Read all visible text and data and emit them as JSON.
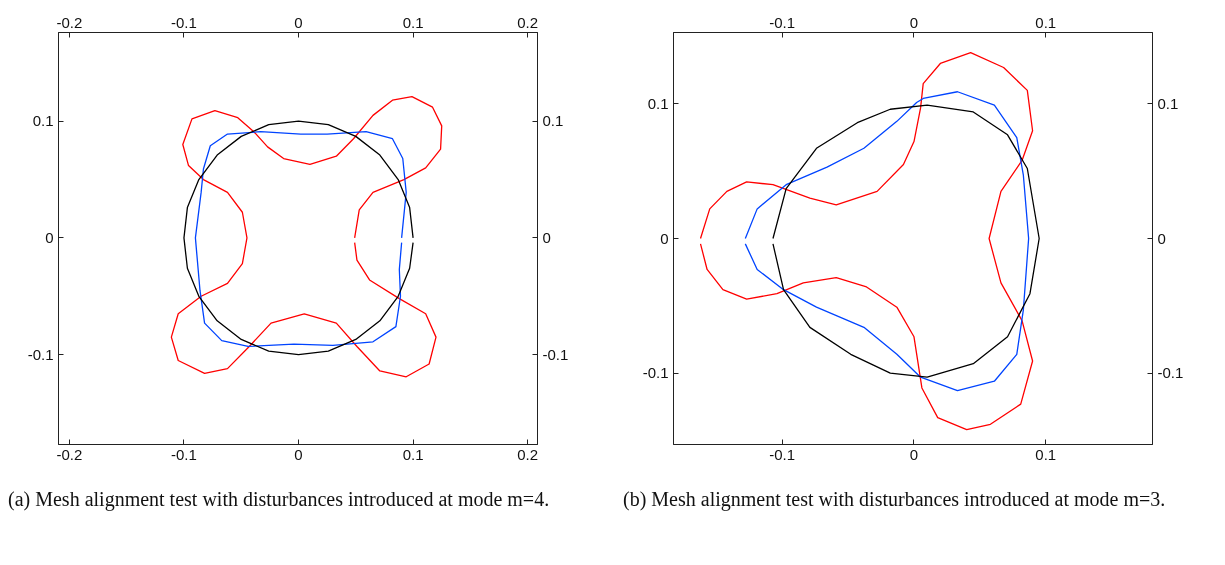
{
  "chart_data": [
    {
      "type": "line",
      "grid": false,
      "marker": "none",
      "line_style": "solid",
      "xlim": [
        -0.2095,
        0.2086
      ],
      "ylim": [
        -0.177,
        0.176
      ],
      "x2lim": [
        -0.2095,
        0.2086
      ],
      "y2lim": [
        -0.177,
        0.176
      ],
      "xticks": [
        -0.2,
        -0.1,
        0,
        0.1,
        0.2
      ],
      "yticks": [
        -0.1,
        0,
        0.1
      ],
      "x2ticks": [
        -0.2,
        -0.1,
        0,
        0.1,
        0.2
      ],
      "y2ticks": [
        -0.1,
        0,
        0.1
      ],
      "series": [
        {
          "color": "#ff0000",
          "x": [
            0.049,
            0.053,
            0.065,
            0.092,
            0.111,
            0.124,
            0.125,
            0.117,
            0.099,
            0.082,
            0.065,
            0.048,
            0.033,
            0.01,
            -0.013,
            -0.027,
            -0.039,
            -0.053,
            -0.073,
            -0.093,
            -0.101,
            -0.096,
            -0.083,
            -0.062,
            -0.049,
            -0.045,
            -0.049,
            -0.062,
            -0.085,
            -0.105,
            -0.111,
            -0.105,
            -0.082,
            -0.062,
            -0.043,
            -0.024,
            0.005,
            0.033,
            0.051,
            0.071,
            0.094,
            0.114,
            0.12,
            0.111,
            0.088,
            0.062,
            0.051,
            0.049
          ],
          "values": [
            0,
            0.024,
            0.039,
            0.05,
            0.06,
            0.076,
            0.096,
            0.112,
            0.121,
            0.118,
            0.105,
            0.085,
            0.07,
            0.063,
            0.068,
            0.078,
            0.091,
            0.103,
            0.109,
            0.102,
            0.08,
            0.062,
            0.05,
            0.039,
            0.022,
            0,
            -0.022,
            -0.039,
            -0.05,
            -0.065,
            -0.085,
            -0.105,
            -0.116,
            -0.112,
            -0.093,
            -0.073,
            -0.065,
            -0.073,
            -0.093,
            -0.114,
            -0.119,
            -0.108,
            -0.085,
            -0.065,
            -0.052,
            -0.036,
            -0.019,
            -0.004
          ]
        },
        {
          "color": "#0044ff",
          "x": [
            0.09,
            0.094,
            0.091,
            0.082,
            0.059,
            0.025,
            0.002,
            -0.033,
            -0.062,
            -0.077,
            -0.083,
            -0.085,
            -0.09,
            -0.086,
            -0.082,
            -0.067,
            -0.044,
            -0.004,
            0.03,
            0.065,
            0.085,
            0.089,
            0.088,
            0.09
          ],
          "values": [
            0,
            0.039,
            0.068,
            0.085,
            0.091,
            0.089,
            0.089,
            0.091,
            0.089,
            0.079,
            0.059,
            0.039,
            0,
            -0.045,
            -0.073,
            -0.088,
            -0.093,
            -0.091,
            -0.092,
            -0.089,
            -0.076,
            -0.05,
            -0.027,
            -0.004
          ]
        },
        {
          "color": "#000000",
          "x": [
            0.1,
            0.097,
            0.087,
            0.071,
            0.05,
            0.026,
            0,
            -0.026,
            -0.05,
            -0.071,
            -0.087,
            -0.097,
            -0.1,
            -0.097,
            -0.087,
            -0.071,
            -0.05,
            -0.026,
            0,
            0.026,
            0.05,
            0.071,
            0.087,
            0.097,
            0.1
          ],
          "values": [
            0,
            0.026,
            0.05,
            0.071,
            0.087,
            0.097,
            0.1,
            0.097,
            0.087,
            0.071,
            0.05,
            0.026,
            0,
            -0.026,
            -0.05,
            -0.071,
            -0.087,
            -0.097,
            -0.1,
            -0.097,
            -0.087,
            -0.071,
            -0.05,
            -0.026,
            -0.004
          ]
        }
      ],
      "annotations": [
        "(a) Mesh alignment test with disturbances introduced at mode m=4."
      ]
    },
    {
      "type": "line",
      "grid": false,
      "marker": "none",
      "line_style": "solid",
      "xlim": [
        -0.1825,
        0.181
      ],
      "ylim": [
        -0.153,
        0.153
      ],
      "x2lim": [
        -0.1825,
        0.181
      ],
      "y2lim": [
        -0.153,
        0.153
      ],
      "xticks": [
        -0.1,
        0,
        0.1
      ],
      "yticks": [
        -0.1,
        0,
        0.1
      ],
      "x2ticks": [
        -0.1,
        0,
        0.1
      ],
      "y2ticks": [
        -0.1,
        0,
        0.1
      ],
      "series": [
        {
          "color": "#ff0000",
          "x": [
            -0.162,
            -0.155,
            -0.142,
            -0.127,
            -0.107,
            -0.079,
            -0.059,
            -0.028,
            -0.008,
            0,
            0.005,
            0.007,
            0.02,
            0.043,
            0.068,
            0.086,
            0.09,
            0.082,
            0.066,
            0.057,
            0.066,
            0.082,
            0.09,
            0.081,
            0.058,
            0.04,
            0.018,
            0.006,
            0,
            -0.013,
            -0.036,
            -0.059,
            -0.084,
            -0.104,
            -0.127,
            -0.145,
            -0.157,
            -0.162
          ],
          "values": [
            0,
            0.022,
            0.035,
            0.042,
            0.04,
            0.03,
            0.025,
            0.035,
            0.055,
            0.072,
            0.097,
            0.115,
            0.13,
            0.138,
            0.127,
            0.11,
            0.08,
            0.058,
            0.035,
            0,
            -0.033,
            -0.061,
            -0.091,
            -0.123,
            -0.138,
            -0.142,
            -0.133,
            -0.111,
            -0.073,
            -0.051,
            -0.036,
            -0.029,
            -0.033,
            -0.041,
            -0.045,
            -0.038,
            -0.023,
            -0.004
          ]
        },
        {
          "color": "#0044ff",
          "x": [
            -0.128,
            -0.119,
            -0.097,
            -0.066,
            -0.038,
            -0.013,
            0.002,
            0.007,
            0.033,
            0.061,
            0.078,
            0.083,
            0.087,
            0.083,
            0.078,
            0.061,
            0.033,
            0.005,
            -0.013,
            -0.038,
            -0.074,
            -0.099,
            -0.119,
            -0.128
          ],
          "values": [
            0,
            0.022,
            0.04,
            0.053,
            0.067,
            0.087,
            0.101,
            0.104,
            0.109,
            0.099,
            0.075,
            0.047,
            0,
            -0.053,
            -0.086,
            -0.106,
            -0.113,
            -0.103,
            -0.086,
            -0.066,
            -0.051,
            -0.038,
            -0.023,
            -0.004
          ]
        },
        {
          "color": "#000000",
          "x": [
            -0.107,
            -0.097,
            -0.074,
            -0.043,
            -0.018,
            0.01,
            0.045,
            0.071,
            0.086,
            0.095,
            0.088,
            0.071,
            0.045,
            0.01,
            -0.018,
            -0.048,
            -0.079,
            -0.099,
            -0.107
          ],
          "values": [
            0,
            0.037,
            0.067,
            0.086,
            0.096,
            0.099,
            0.094,
            0.077,
            0.052,
            0,
            -0.041,
            -0.073,
            -0.093,
            -0.103,
            -0.1,
            -0.086,
            -0.066,
            -0.038,
            -0.004
          ]
        }
      ],
      "annotations": [
        "(b) Mesh alignment test with disturbances introduced at mode m=3."
      ]
    }
  ]
}
